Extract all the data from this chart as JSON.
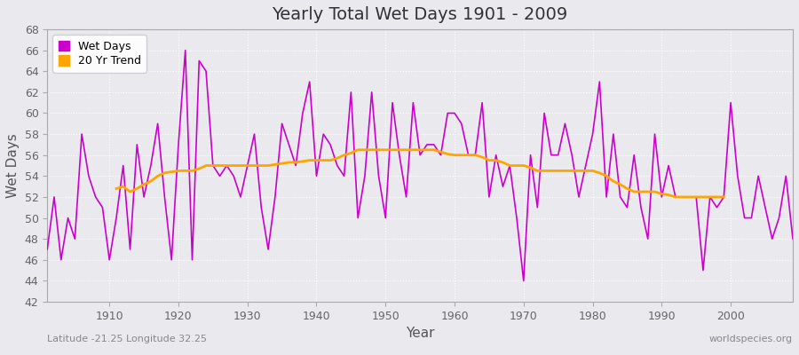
{
  "title": "Yearly Total Wet Days 1901 - 2009",
  "xlabel": "Year",
  "ylabel": "Wet Days",
  "bottom_left_label": "Latitude -21.25 Longitude 32.25",
  "bottom_right_label": "worldspecies.org",
  "legend_wet_days": "Wet Days",
  "legend_trend": "20 Yr Trend",
  "wet_days_color": "#cc00cc",
  "trend_color": "#FFA500",
  "background_color": "#eaeaee",
  "fig_background_color": "#eaeaee",
  "grid_color": "#ffffff",
  "ylim": [
    42,
    68
  ],
  "xlim": [
    1901,
    2009
  ],
  "yticks": [
    42,
    44,
    46,
    48,
    50,
    52,
    54,
    56,
    58,
    60,
    62,
    64,
    66,
    68
  ],
  "xticks": [
    1910,
    1920,
    1930,
    1940,
    1950,
    1960,
    1970,
    1980,
    1990,
    2000
  ],
  "years": [
    1901,
    1902,
    1903,
    1904,
    1905,
    1906,
    1907,
    1908,
    1909,
    1910,
    1911,
    1912,
    1913,
    1914,
    1915,
    1916,
    1917,
    1918,
    1919,
    1920,
    1921,
    1922,
    1923,
    1924,
    1925,
    1926,
    1927,
    1928,
    1929,
    1930,
    1931,
    1932,
    1933,
    1934,
    1935,
    1936,
    1937,
    1938,
    1939,
    1940,
    1941,
    1942,
    1943,
    1944,
    1945,
    1946,
    1947,
    1948,
    1949,
    1950,
    1951,
    1952,
    1953,
    1954,
    1955,
    1956,
    1957,
    1958,
    1959,
    1960,
    1961,
    1962,
    1963,
    1964,
    1965,
    1966,
    1967,
    1968,
    1969,
    1970,
    1971,
    1972,
    1973,
    1974,
    1975,
    1976,
    1977,
    1978,
    1979,
    1980,
    1981,
    1982,
    1983,
    1984,
    1985,
    1986,
    1987,
    1988,
    1989,
    1990,
    1991,
    1992,
    1993,
    1994,
    1995,
    1996,
    1997,
    1998,
    1999,
    2000,
    2001,
    2002,
    2003,
    2004,
    2005,
    2006,
    2007,
    2008,
    2009
  ],
  "wet_days": [
    47,
    52,
    46,
    50,
    48,
    58,
    54,
    52,
    51,
    46,
    50,
    55,
    47,
    57,
    52,
    55,
    59,
    52,
    46,
    57,
    66,
    46,
    65,
    64,
    55,
    54,
    55,
    54,
    52,
    55,
    58,
    51,
    47,
    52,
    59,
    57,
    55,
    60,
    63,
    54,
    58,
    57,
    55,
    54,
    62,
    50,
    54,
    62,
    54,
    50,
    61,
    56,
    52,
    61,
    56,
    57,
    57,
    56,
    60,
    60,
    59,
    56,
    56,
    61,
    52,
    56,
    53,
    55,
    50,
    44,
    56,
    51,
    60,
    56,
    56,
    59,
    56,
    52,
    55,
    58,
    63,
    52,
    58,
    52,
    51,
    56,
    51,
    48,
    58,
    52,
    55,
    52,
    52,
    52,
    52,
    45,
    52,
    51,
    52,
    61,
    54,
    50,
    50,
    54,
    51,
    48,
    50,
    54,
    48
  ],
  "trend": [
    null,
    null,
    null,
    null,
    null,
    null,
    null,
    null,
    null,
    null,
    52.8,
    53.0,
    52.5,
    52.8,
    53.2,
    53.5,
    54.0,
    54.3,
    54.4,
    54.5,
    54.5,
    54.5,
    54.7,
    55.0,
    55.0,
    55.0,
    55.0,
    55.0,
    55.0,
    55.0,
    55.0,
    55.0,
    55.0,
    55.1,
    55.2,
    55.3,
    55.3,
    55.4,
    55.5,
    55.5,
    55.5,
    55.5,
    55.7,
    56.0,
    56.2,
    56.5,
    56.5,
    56.5,
    56.5,
    56.5,
    56.5,
    56.5,
    56.5,
    56.5,
    56.5,
    56.5,
    56.5,
    56.3,
    56.1,
    56.0,
    56.0,
    56.0,
    56.0,
    55.8,
    55.5,
    55.5,
    55.3,
    55.0,
    55.0,
    55.0,
    54.8,
    54.5,
    54.5,
    54.5,
    54.5,
    54.5,
    54.5,
    54.5,
    54.5,
    54.5,
    54.3,
    54.0,
    53.5,
    53.2,
    52.8,
    52.5,
    52.5,
    52.5,
    52.5,
    52.3,
    52.2,
    52.0,
    52.0,
    52.0,
    52.0,
    52.0,
    52.0,
    52.0,
    52.0,
    null,
    null,
    null,
    null,
    null,
    null,
    null,
    null,
    null,
    null
  ]
}
